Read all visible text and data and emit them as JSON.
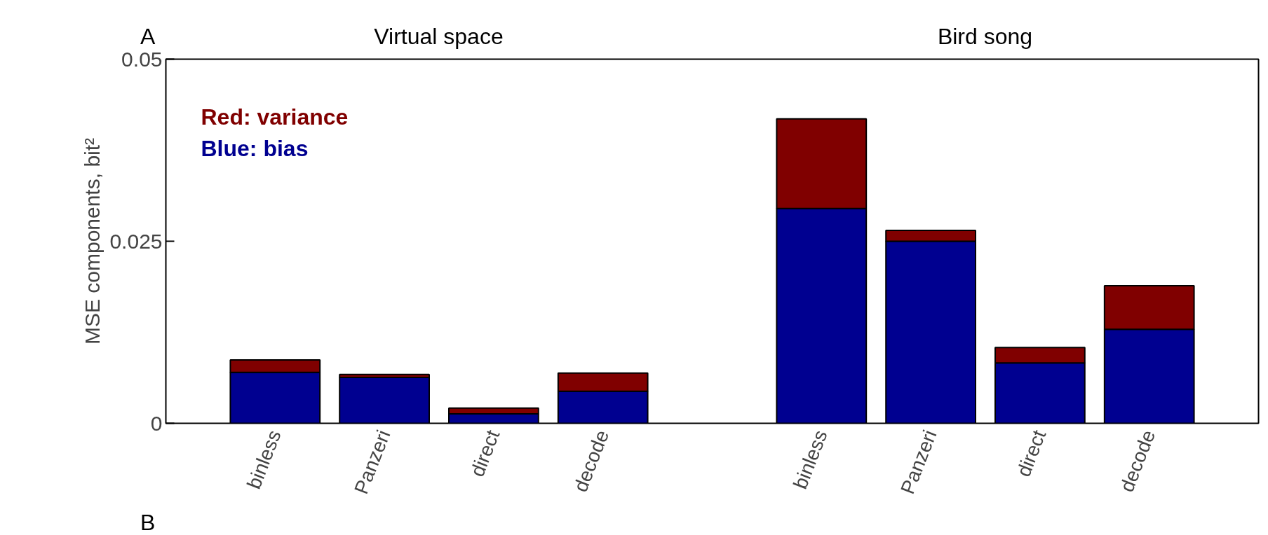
{
  "chart_data": {
    "type": "bar",
    "stacked": true,
    "ylabel": "MSE components, bit²",
    "categories": [
      "binless",
      "Panzeri",
      "direct",
      "decode",
      null,
      "binless",
      "Panzeri",
      "direct",
      "decode"
    ],
    "series": [
      {
        "name": "Blue: bias",
        "color": "#000090",
        "values": [
          0.007,
          0.0063,
          0.0013,
          0.0044,
          null,
          0.0295,
          0.025,
          0.0083,
          0.0129
        ]
      },
      {
        "name": "Red: variance",
        "color": "#800000",
        "values": [
          0.0017,
          0.0004,
          0.0008,
          0.0025,
          null,
          0.0123,
          0.0015,
          0.0021,
          0.006
        ]
      }
    ],
    "ylim": [
      0,
      0.05
    ],
    "yticks": [
      0,
      0.025,
      0.05
    ],
    "grid": false,
    "annotations": [
      "A",
      "Virtual space",
      "Bird song",
      "B"
    ]
  }
}
